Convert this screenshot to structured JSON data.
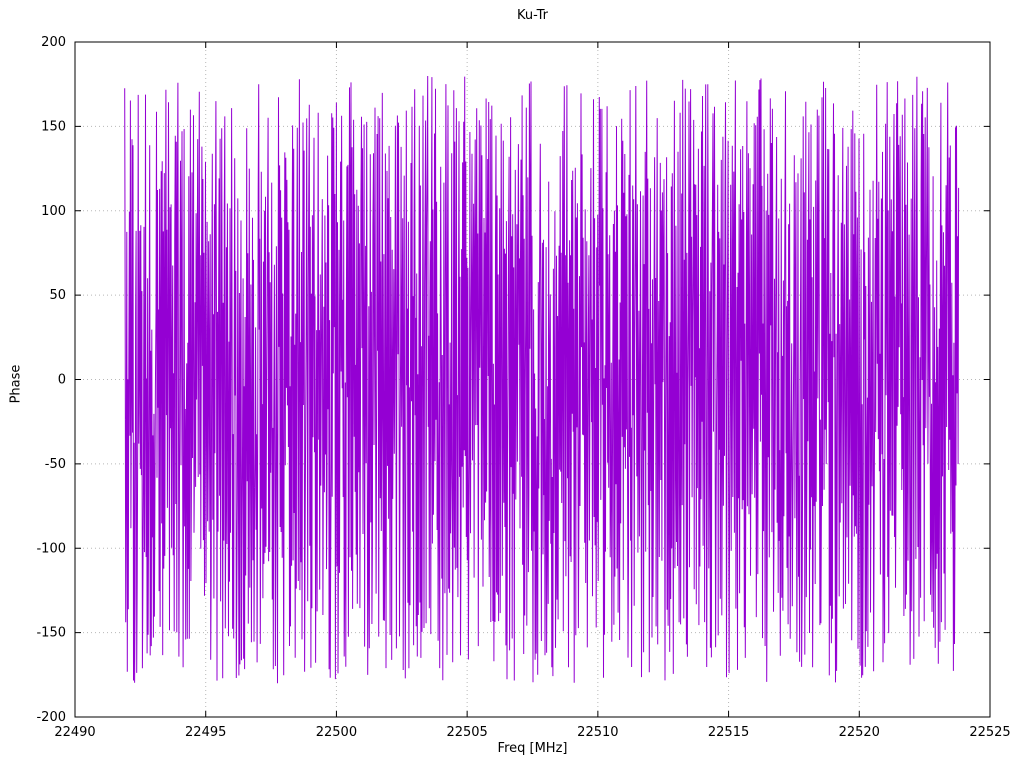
{
  "chart": {
    "title": "Ku-Tr",
    "xlabel": "Freq [MHz]",
    "ylabel": "Phase"
  },
  "chart_data": {
    "type": "line",
    "title": "Ku-Tr",
    "xlabel": "Freq [MHz]",
    "ylabel": "Phase",
    "xlim": [
      22490,
      22525
    ],
    "ylim": [
      -200,
      200
    ],
    "xticks": [
      22490,
      22495,
      22500,
      22505,
      22510,
      22515,
      22520,
      22525
    ],
    "yticks": [
      -200,
      -150,
      -100,
      -50,
      0,
      50,
      100,
      150,
      200
    ],
    "grid": true,
    "grid_color": "#b8b8b8",
    "line_color": "#9400d3",
    "legend": "none",
    "x_data_range": [
      22491.9,
      22523.8
    ],
    "y_data_range": [
      -180,
      182
    ],
    "n_points": 1600,
    "series": [
      {
        "name": "phase",
        "description": "densely wrapped measured phase vs frequency; values uniformly span -180 to +180 deg and wrap rapidly, rendered as near-vertical connected line segments",
        "generator": {
          "type": "wrapped-phase-noise",
          "seed": 42,
          "step_deg": 147,
          "noise_deg": 210,
          "wrap_deg": 180
        }
      }
    ]
  }
}
